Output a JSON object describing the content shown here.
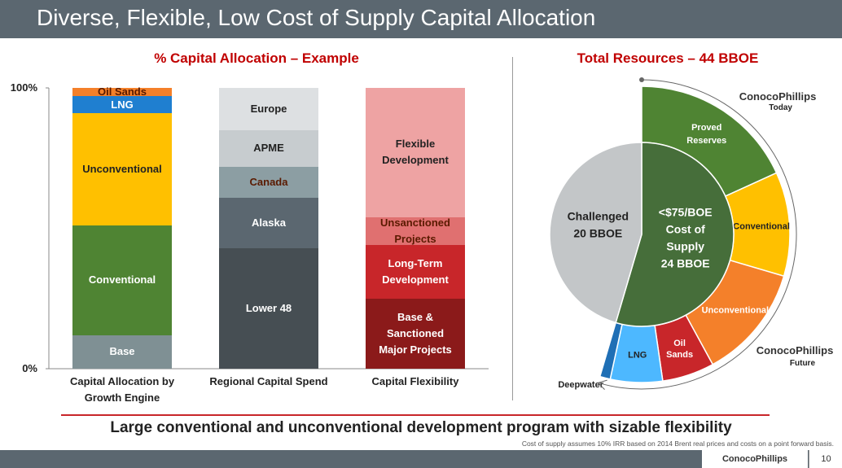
{
  "header": {
    "title": "Diverse, Flexible, Low Cost of Supply Capital Allocation"
  },
  "chart_data": [
    {
      "type": "stacked-bar",
      "title": "% Capital Allocation – Example",
      "ylim": [
        0,
        100
      ],
      "yticks": [
        {
          "value": 0,
          "label": "0%"
        },
        {
          "value": 100,
          "label": "100%"
        }
      ],
      "bars": [
        {
          "category": "Capital Allocation by Growth Engine",
          "segments": [
            {
              "name": "Base",
              "color": "#7f9094",
              "value": 12
            },
            {
              "name": "Conventional",
              "color": "#4f8433",
              "value": 39
            },
            {
              "name": "Unconventional",
              "color": "#ffc000",
              "value": 40
            },
            {
              "name": "LNG",
              "color": "#1f7fd0",
              "value": 6
            },
            {
              "name": "Oil Sands",
              "color": "#f4802a",
              "value": 3
            }
          ]
        },
        {
          "category": "Regional Capital Spend",
          "segments": [
            {
              "name": "Lower 48",
              "color": "#464e53",
              "value": 43
            },
            {
              "name": "Alaska",
              "color": "#5b6770",
              "value": 18
            },
            {
              "name": "Canada",
              "color": "#8c9ea3",
              "value": 11
            },
            {
              "name": "APME",
              "color": "#c7cccf",
              "value": 13
            },
            {
              "name": "Europe",
              "color": "#dde0e2",
              "value": 15
            }
          ]
        },
        {
          "category": "Capital Flexibility",
          "segments": [
            {
              "name": "Base & Sanctioned Major Projects",
              "color": "#8b1a1a",
              "value": 25
            },
            {
              "name": "Long-Term Development",
              "color": "#c8262a",
              "value": 19
            },
            {
              "name": "Unsanctioned Projects",
              "color": "#e07070",
              "value": 10
            },
            {
              "name": "Flexible Development",
              "color": "#eea3a3",
              "value": 46
            }
          ]
        }
      ]
    },
    {
      "type": "donut",
      "title": "Total Resources – 44 BBOE",
      "inner": [
        {
          "name": "<$75/BOE Cost of Supply",
          "color": "#466e3a",
          "value": 24,
          "value_label": "24 BBOE"
        },
        {
          "name": "Challenged",
          "color": "#c3c6c8",
          "value": 20,
          "value_label": "20 BBOE"
        }
      ],
      "outer": [
        {
          "name": "Proved Reserves",
          "color": "#4f8433",
          "value": 8
        },
        {
          "name": "Conventional",
          "color": "#ffc000",
          "value": 5
        },
        {
          "name": "Unconventional",
          "color": "#f4802a",
          "value": 5.5
        },
        {
          "name": "Oil Sands",
          "color": "#c8262a",
          "value": 2.5
        },
        {
          "name": "LNG",
          "color": "#4db8ff",
          "value": 2.5
        },
        {
          "name": "Deepwater",
          "color": "#1f6fb5",
          "value": 0.5
        }
      ],
      "annotations": {
        "logo_top": "ConocoPhillips",
        "today": "Today",
        "logo_bottom": "ConocoPhillips",
        "future": "Future"
      }
    }
  ],
  "banner": "Large conventional and unconventional development program with sizable flexibility",
  "footnote": "Cost of supply assumes 10% IRR based on 2014 Brent real prices and costs on a point forward basis.",
  "footer": {
    "logo": "ConocoPhillips",
    "page": 10
  }
}
